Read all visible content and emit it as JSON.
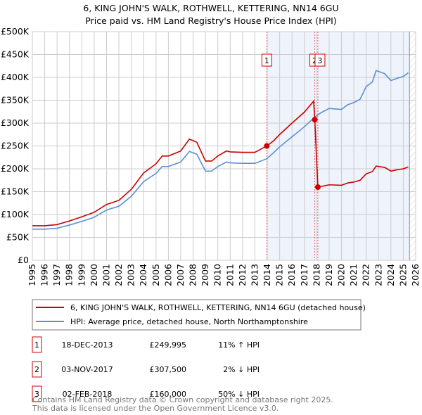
{
  "chart_data": {
    "type": "line",
    "title": "6, KING JOHN'S WALK, ROTHWELL, KETTERING, NN14 6GU",
    "subtitle": "Price paid vs. HM Land Registry's House Price Index (HPI)",
    "xlim": [
      1995,
      2026
    ],
    "ylim": [
      0,
      500000
    ],
    "yticks": [
      0,
      50000,
      100000,
      150000,
      200000,
      250000,
      300000,
      350000,
      400000,
      450000,
      500000
    ],
    "ytick_labels": [
      "£0",
      "£50K",
      "£100K",
      "£150K",
      "£200K",
      "£250K",
      "£300K",
      "£350K",
      "£400K",
      "£450K",
      "£500K"
    ],
    "xticks": [
      "1995",
      "1996",
      "1997",
      "1998",
      "1999",
      "2000",
      "2001",
      "2002",
      "2003",
      "2004",
      "2005",
      "2006",
      "2007",
      "2008",
      "2009",
      "2010",
      "2011",
      "2012",
      "2013",
      "2014",
      "2015",
      "2016",
      "2017",
      "2018",
      "2019",
      "2020",
      "2021",
      "2022",
      "2023",
      "2024",
      "2025",
      "2026"
    ],
    "grid": true,
    "shaded_from": 2013.96,
    "hatched_from": 2025.5,
    "series": [
      {
        "name": "6, KING JOHN'S WALK, ROTHWELL, KETTERING, NN14 6GU (detached house)",
        "color": "#cc0000",
        "x": [
          1995,
          1996,
          1997,
          1998,
          1999,
          2000,
          2001,
          2002,
          2003,
          2004,
          2005,
          2005.5,
          2006,
          2007,
          2007.7,
          2008.3,
          2009,
          2009.5,
          2010,
          2010.7,
          2011,
          2012,
          2013,
          2013.96,
          2014.5,
          2015,
          2016,
          2017,
          2017.75,
          2017.84,
          2018.09,
          2019,
          2020,
          2020.5,
          2021,
          2021.5,
          2022,
          2022.5,
          2022.8,
          2023.5,
          2024,
          2024.5,
          2025,
          2025.4
        ],
        "y": [
          75500,
          75500,
          78000,
          86000,
          95000,
          105000,
          122000,
          131000,
          155000,
          191000,
          211000,
          228000,
          228000,
          239000,
          265000,
          258000,
          217000,
          217000,
          228000,
          239000,
          237000,
          236000,
          236000,
          249995,
          261000,
          275000,
          300000,
          324000,
          348000,
          307500,
          160000,
          165000,
          164000,
          169000,
          171000,
          175000,
          189000,
          194000,
          206000,
          203000,
          195000,
          198000,
          200000,
          204000
        ]
      },
      {
        "name": "HPI: Average price, detached house, North Northamptonshire",
        "color": "#5b8fd4",
        "x": [
          1995,
          1996,
          1997,
          1998,
          1999,
          2000,
          2001,
          2002,
          2003,
          2004,
          2005,
          2005.5,
          2006,
          2007,
          2007.7,
          2008.3,
          2009,
          2009.5,
          2010,
          2010.7,
          2011,
          2012,
          2013,
          2013.96,
          2014.5,
          2015,
          2016,
          2017,
          2017.84,
          2018.3,
          2019,
          2020,
          2020.5,
          2021,
          2021.5,
          2022,
          2022.5,
          2022.8,
          2023.5,
          2024,
          2024.5,
          2025,
          2025.4
        ],
        "y": [
          68000,
          68000,
          70000,
          77000,
          85000,
          94000,
          110000,
          118000,
          140000,
          172000,
          190000,
          205000,
          205000,
          215000,
          238000,
          232000,
          195000,
          195000,
          205000,
          215000,
          213000,
          212000,
          212000,
          222000,
          235000,
          248000,
          270000,
          292000,
          313000,
          322000,
          332000,
          330000,
          340000,
          345000,
          352000,
          380000,
          390000,
          415000,
          408000,
          393000,
          398000,
          402000,
          410000
        ]
      }
    ],
    "sales": [
      {
        "label": "1",
        "x": 2013.96,
        "y": 249995,
        "date": "18-DEC-2013",
        "price": "£249,995",
        "hpi": "11% ↑ HPI"
      },
      {
        "label": "2",
        "x": 2017.84,
        "y": 307500,
        "date": "03-NOV-2017",
        "price": "£307,500",
        "hpi": "2% ↓ HPI"
      },
      {
        "label": "3",
        "x": 2018.09,
        "y": 160000,
        "date": "02-FEB-2018",
        "price": "£160,000",
        "hpi": "50% ↓ HPI"
      }
    ]
  },
  "footer": {
    "line1": "Contains HM Land Registry data © Crown copyright and database right 2025.",
    "line2": "This data is licensed under the Open Government Licence v3.0."
  }
}
